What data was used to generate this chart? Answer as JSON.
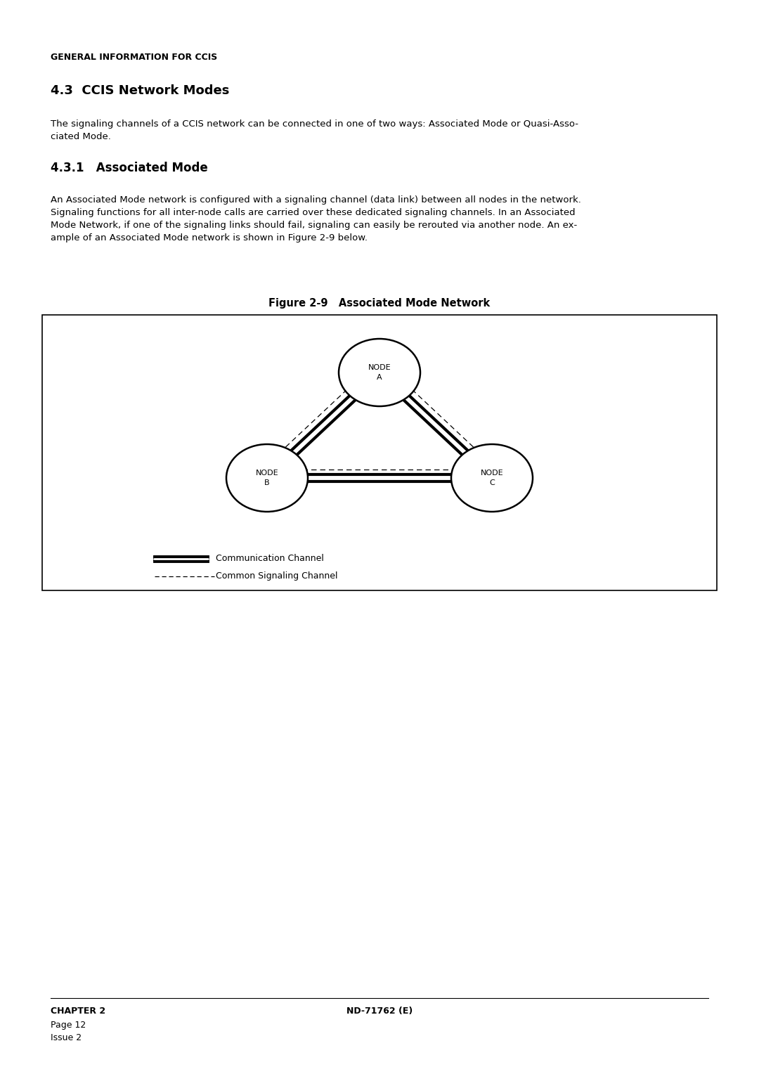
{
  "page_title": "GENERAL INFORMATION FOR CCIS",
  "section_title": "4.3  CCIS Network Modes",
  "section_body_line1": "The signaling channels of a CCIS network can be connected in one of two ways: Associated Mode or Quasi-Asso-",
  "section_body_line2": "ciated Mode.",
  "subsection_title": "4.3.1   Associated Mode",
  "sub_body_line1": "An Associated Mode network is configured with a signaling channel (data link) between all nodes in the network.",
  "sub_body_line2": "Signaling functions for all inter-node calls are carried over these dedicated signaling channels. In an Associated",
  "sub_body_line3": "Mode Network, if one of the signaling links should fail, signaling can easily be rerouted via another node. An ex-",
  "sub_body_line4": "ample of an Associated Mode network is shown in Figure 2-9 below.",
  "figure_caption": "Figure 2-9   Associated Mode Network",
  "legend_comm": "Communication Channel",
  "legend_sig": "Common Signaling Channel",
  "footer_left_1": "CHAPTER 2",
  "footer_left_2": "Page 12",
  "footer_left_3": "Issue 2",
  "footer_center": "ND-71762 (E)",
  "bg_color": "#ffffff",
  "text_color": "#000000"
}
